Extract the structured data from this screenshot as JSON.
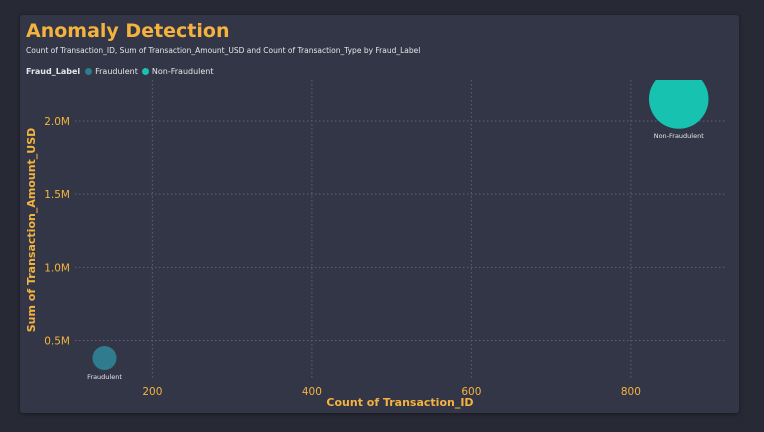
{
  "chart_data": {
    "type": "scatter",
    "title": "Anomaly Detection",
    "subtitle": "Count of Transaction_ID, Sum of Transaction_Amount_USD and Count of Transaction_Type by Fraud_Label",
    "xlabel": "Count of Transaction_ID",
    "ylabel": "Sum of Transaction_Amount_USD",
    "xlim": [
      103,
      918
    ],
    "ylim": [
      230000,
      2280000
    ],
    "x_ticks": [
      200,
      400,
      600,
      800
    ],
    "x_tick_labels": [
      "200",
      "400",
      "600",
      "800"
    ],
    "y_ticks": [
      500000,
      1000000,
      1500000,
      2000000
    ],
    "y_tick_labels": [
      "0.5M",
      "1.0M",
      "1.5M",
      "2.0M"
    ],
    "grid": true,
    "legend": {
      "title": "Fraud_Label",
      "position": "top-left",
      "entries": [
        "Fraudulent",
        "Non-Fraudulent"
      ]
    },
    "size_measure": "Count of Transaction_Type",
    "series": [
      {
        "name": "Fraudulent",
        "color": "#2E7C8E",
        "points": [
          {
            "x": 140,
            "y": 380000,
            "size": 140,
            "label": "Fraudulent"
          }
        ]
      },
      {
        "name": "Non-Fraudulent",
        "color": "#17C3B0",
        "points": [
          {
            "x": 860,
            "y": 2150000,
            "size": 860,
            "label": "Non-Fraudulent"
          }
        ]
      }
    ]
  },
  "colors": {
    "page_background": "#272935",
    "card_background": "#333647",
    "accent": "#F4B33E",
    "text": "#E6E6EA",
    "gridline": "#5E6273"
  }
}
